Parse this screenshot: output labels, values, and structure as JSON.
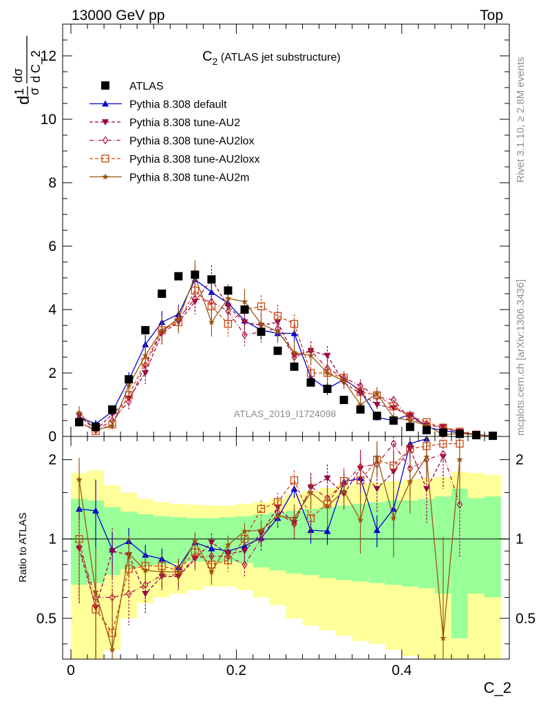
{
  "header": {
    "left": "13000 GeV pp",
    "right": "Top"
  },
  "side_labels": {
    "top": "Rivet 3.1.10, ≥ 2.8M events",
    "bottom": "mcplots.cern.ch [arXiv:1306.3436]"
  },
  "colors": {
    "data": "#000000",
    "default": "#0000cc",
    "au2": "#990044",
    "au2lox": "#aa1144",
    "au2loxx": "#cc4411",
    "au2m": "#995511",
    "band_inner": "#99ff99",
    "band_outer": "#ffff99"
  },
  "chart_data": [
    {
      "type": "scatter",
      "title": "C",
      "title_sub": "2",
      "title_suffix": " (ATLAS jet substructure)",
      "ylabel_parts": {
        "d1": "d",
        "one": "1",
        "sigma": "σ",
        "d2": "d",
        "dsigma": "dσ",
        "d3": "d",
        "var": "C_2"
      },
      "xlim": [
        -0.01,
        0.53
      ],
      "ylim": [
        0,
        13
      ],
      "yticks": [
        0,
        2,
        4,
        6,
        8,
        10,
        12
      ],
      "ytick_labels": [
        "0",
        "2",
        "4",
        "6",
        "8",
        "10",
        "12"
      ],
      "watermark": "ATLAS_2019_I1724098",
      "x": [
        0.01,
        0.03,
        0.05,
        0.07,
        0.09,
        0.11,
        0.13,
        0.15,
        0.17,
        0.19,
        0.21,
        0.23,
        0.25,
        0.27,
        0.29,
        0.31,
        0.33,
        0.35,
        0.37,
        0.39,
        0.41,
        0.43,
        0.45,
        0.47,
        0.49,
        0.51
      ],
      "series": [
        {
          "key": "data",
          "name": "ATLAS",
          "marker": "square",
          "line": "none",
          "values": [
            0.45,
            0.3,
            0.85,
            1.8,
            3.35,
            4.5,
            5.05,
            5.1,
            4.95,
            4.6,
            4.0,
            3.3,
            2.7,
            2.2,
            1.7,
            1.5,
            1.15,
            0.85,
            0.65,
            0.5,
            0.3,
            0.2,
            0.12,
            0.08,
            0.04,
            0.02
          ]
        },
        {
          "key": "default",
          "name": "Pythia 8.308 default",
          "marker": "triangle-up",
          "line": "solid",
          "values": [
            0.6,
            0.4,
            0.78,
            1.78,
            2.9,
            3.6,
            3.85,
            4.95,
            4.55,
            4.2,
            3.65,
            3.35,
            3.25,
            3.25,
            1.85,
            1.5,
            1.8,
            1.45,
            0.6,
            0.5,
            0.7,
            0.3,
            0.18,
            0.12,
            0.05,
            0.02
          ],
          "errors": [
            0.12,
            0.12,
            0.12,
            0.25,
            0.3,
            0.35,
            0.3,
            0.4,
            0.4,
            0.35,
            0.3,
            0.3,
            0.3,
            0.3,
            0.25,
            0.2,
            0.2,
            0.2,
            0.1,
            0.1,
            0.1,
            0.06,
            0.05,
            0.04,
            0.02,
            0.01
          ]
        },
        {
          "key": "au2",
          "name": "Pythia 8.308 tune-AU2",
          "marker": "triangle-down",
          "line": "dashed",
          "values": [
            0.65,
            0.2,
            0.7,
            1.2,
            2.0,
            3.25,
            3.6,
            4.25,
            4.95,
            4.1,
            3.6,
            3.5,
            3.6,
            2.55,
            2.7,
            2.55,
            1.7,
            1.35,
            1.0,
            0.9,
            0.65,
            0.35,
            0.3,
            0.15,
            0.05,
            0.02
          ],
          "errors": [
            0.15,
            0.08,
            0.15,
            0.25,
            0.35,
            0.35,
            0.35,
            0.4,
            0.45,
            0.4,
            0.35,
            0.35,
            0.35,
            0.3,
            0.3,
            0.3,
            0.2,
            0.2,
            0.15,
            0.12,
            0.1,
            0.08,
            0.06,
            0.04,
            0.02,
            0.01
          ]
        },
        {
          "key": "au2lox",
          "name": "Pythia 8.308 tune-AU2lox",
          "marker": "diamond-open",
          "line": "dashdot",
          "values": [
            0.45,
            0.2,
            0.5,
            1.1,
            2.25,
            3.3,
            3.7,
            4.35,
            4.25,
            3.95,
            3.2,
            3.3,
            3.4,
            2.5,
            2.7,
            2.15,
            1.85,
            1.6,
            1.25,
            1.15,
            0.55,
            0.4,
            0.25,
            0.15,
            0.05,
            0.02
          ],
          "errors": [
            0.15,
            0.08,
            0.15,
            0.25,
            0.35,
            0.35,
            0.35,
            0.4,
            0.4,
            0.4,
            0.35,
            0.35,
            0.35,
            0.3,
            0.3,
            0.3,
            0.2,
            0.2,
            0.15,
            0.12,
            0.1,
            0.08,
            0.06,
            0.04,
            0.02,
            0.01
          ]
        },
        {
          "key": "au2loxx",
          "name": "Pythia 8.308 tune-AU2loxx",
          "marker": "square-open",
          "line": "dashed",
          "values": [
            0.45,
            0.17,
            0.38,
            1.3,
            2.35,
            3.35,
            3.6,
            4.6,
            4.1,
            3.55,
            4.0,
            4.1,
            3.8,
            3.55,
            2.0,
            2.0,
            1.85,
            1.4,
            1.3,
            0.95,
            0.65,
            0.45,
            0.28,
            0.15,
            0.06,
            0.02
          ],
          "errors": [
            0.15,
            0.08,
            0.12,
            0.25,
            0.35,
            0.35,
            0.35,
            0.4,
            0.4,
            0.4,
            0.35,
            0.35,
            0.35,
            0.3,
            0.3,
            0.3,
            0.2,
            0.2,
            0.15,
            0.12,
            0.1,
            0.08,
            0.06,
            0.04,
            0.02,
            0.01
          ]
        },
        {
          "key": "au2m",
          "name": "Pythia 8.308 tune-AU2m",
          "marker": "star",
          "line": "solid",
          "values": [
            0.75,
            0.2,
            0.33,
            1.6,
            2.55,
            3.35,
            3.7,
            5.05,
            3.6,
            4.35,
            4.25,
            3.55,
            3.3,
            2.65,
            2.55,
            2.0,
            1.75,
            1.0,
            1.35,
            0.6,
            0.5,
            0.35,
            0.05,
            0.1,
            0.05,
            0.02
          ],
          "errors": [
            0.2,
            0.08,
            0.12,
            0.3,
            0.4,
            0.4,
            0.4,
            0.5,
            0.45,
            0.45,
            0.4,
            0.4,
            0.35,
            0.35,
            0.3,
            0.3,
            0.25,
            0.2,
            0.2,
            0.15,
            0.12,
            0.08,
            0.06,
            0.04,
            0.02,
            0.01
          ]
        }
      ]
    },
    {
      "type": "line",
      "ylabel": "Ratio to ATLAS",
      "xlabel": "C_2",
      "xlim": [
        -0.01,
        0.53
      ],
      "ylim": [
        0.35,
        2.45
      ],
      "xticks": [
        0,
        0.2,
        0.4
      ],
      "xtick_labels": [
        "0",
        "0.2",
        "0.4"
      ],
      "yticks": [
        0.5,
        1,
        2
      ],
      "ytick_labels": [
        "0.5",
        "1",
        "2"
      ],
      "x": [
        0.01,
        0.03,
        0.05,
        0.07,
        0.09,
        0.11,
        0.13,
        0.15,
        0.17,
        0.19,
        0.21,
        0.23,
        0.25,
        0.27,
        0.29,
        0.31,
        0.33,
        0.35,
        0.37,
        0.39,
        0.41,
        0.43,
        0.45,
        0.47,
        0.49,
        0.51
      ],
      "band_inner": {
        "lo": [
          0.67,
          0.68,
          0.73,
          0.77,
          0.79,
          0.8,
          0.81,
          0.82,
          0.82,
          0.82,
          0.81,
          0.78,
          0.76,
          0.74,
          0.73,
          0.71,
          0.7,
          0.69,
          0.68,
          0.67,
          0.66,
          0.65,
          0.62,
          0.42,
          0.62,
          0.6
        ],
        "hi": [
          1.42,
          1.4,
          1.32,
          1.27,
          1.24,
          1.22,
          1.21,
          1.2,
          1.2,
          1.21,
          1.22,
          1.24,
          1.26,
          1.28,
          1.3,
          1.32,
          1.34,
          1.36,
          1.38,
          1.4,
          1.4,
          1.42,
          1.45,
          1.55,
          1.43,
          1.45
        ]
      },
      "band_outer": {
        "lo": [
          0.35,
          0.35,
          0.38,
          0.5,
          0.57,
          0.6,
          0.62,
          0.64,
          0.66,
          0.66,
          0.64,
          0.6,
          0.56,
          0.5,
          0.47,
          0.45,
          0.43,
          0.41,
          0.4,
          0.38,
          0.36,
          0.35,
          0.35,
          0.35,
          0.35,
          0.35
        ],
        "hi": [
          1.78,
          1.82,
          1.6,
          1.5,
          1.42,
          1.38,
          1.36,
          1.35,
          1.34,
          1.34,
          1.36,
          1.38,
          1.42,
          1.48,
          1.52,
          1.56,
          1.6,
          1.62,
          1.64,
          1.66,
          1.68,
          1.7,
          1.72,
          1.8,
          1.78,
          1.75
        ]
      },
      "series": [
        {
          "key": "default",
          "name": "Pythia 8.308 default",
          "values": [
            1.3,
            1.28,
            0.91,
            0.98,
            0.87,
            0.84,
            0.78,
            0.97,
            0.92,
            0.9,
            0.94,
            1.01,
            1.2,
            1.55,
            1.08,
            1.07,
            1.65,
            1.7,
            1.08,
            1.3,
            2.3,
            2.4,
            null,
            null,
            null,
            null
          ],
          "errors": [
            0.12,
            0.4,
            0.15,
            0.12,
            0.08,
            0.08,
            0.06,
            0.07,
            0.07,
            0.07,
            0.07,
            0.08,
            0.1,
            0.12,
            0.12,
            0.12,
            0.15,
            0.2,
            0.15,
            0.2,
            0.3,
            0.3,
            null,
            null,
            null,
            null
          ]
        },
        {
          "key": "au2",
          "name": "Pythia 8.308 tune-AU2",
          "values": [
            0.92,
            0.55,
            0.9,
            0.87,
            0.62,
            0.72,
            0.72,
            0.84,
            0.97,
            0.88,
            0.9,
            1.05,
            1.32,
            1.15,
            1.57,
            1.7,
            1.48,
            1.85,
            1.55,
            1.8,
            2.2,
            1.55,
            2.05,
            null,
            null,
            null
          ],
          "errors": [
            0.35,
            0.3,
            0.2,
            0.15,
            0.1,
            0.08,
            0.08,
            0.08,
            0.08,
            0.08,
            0.08,
            0.1,
            0.12,
            0.15,
            0.2,
            0.22,
            0.2,
            0.3,
            0.3,
            0.35,
            0.4,
            0.4,
            0.5,
            null,
            null,
            null
          ]
        },
        {
          "key": "au2lox",
          "name": "Pythia 8.308 tune-AU2lox",
          "values": [
            0.93,
            0.6,
            0.6,
            0.62,
            0.67,
            0.73,
            0.73,
            0.85,
            0.86,
            0.86,
            0.8,
            1.0,
            1.26,
            1.14,
            1.58,
            1.43,
            1.62,
            1.88,
            1.92,
            2.3,
            1.85,
            2.0,
            2.1,
            1.35,
            null,
            null
          ],
          "errors": [
            0.35,
            0.3,
            0.2,
            0.15,
            0.1,
            0.08,
            0.08,
            0.08,
            0.08,
            0.08,
            0.08,
            0.1,
            0.12,
            0.15,
            0.2,
            0.22,
            0.2,
            0.3,
            0.3,
            0.35,
            0.4,
            0.4,
            0.5,
            0.5,
            null,
            null
          ]
        },
        {
          "key": "au2loxx",
          "name": "Pythia 8.308 tune-AU2loxx",
          "values": [
            1.0,
            0.54,
            0.44,
            0.77,
            0.79,
            0.79,
            0.76,
            0.89,
            0.8,
            0.83,
            1.0,
            1.3,
            1.38,
            1.67,
            1.2,
            1.36,
            1.66,
            1.67,
            2.0,
            1.9,
            2.2,
            2.25,
            2.3,
            2.3,
            null,
            null
          ],
          "errors": [
            0.35,
            0.3,
            0.2,
            0.15,
            0.1,
            0.08,
            0.08,
            0.08,
            0.08,
            0.08,
            0.08,
            0.1,
            0.12,
            0.15,
            0.2,
            0.22,
            0.2,
            0.3,
            0.3,
            0.35,
            0.4,
            0.4,
            0.5,
            0.5,
            null,
            null
          ]
        },
        {
          "key": "au2m",
          "name": "Pythia 8.308 tune-AU2m",
          "values": [
            1.68,
            0.63,
            0.38,
            0.88,
            0.76,
            0.75,
            0.75,
            0.98,
            0.75,
            0.95,
            1.07,
            1.08,
            1.22,
            1.2,
            1.5,
            1.33,
            1.52,
            1.18,
            2.05,
            1.2,
            1.65,
            2.05,
            0.42,
            2.0,
            null,
            null
          ],
          "errors": [
            0.35,
            0.3,
            0.2,
            0.15,
            0.1,
            0.08,
            0.08,
            0.08,
            0.08,
            0.08,
            0.08,
            0.1,
            0.12,
            0.15,
            0.2,
            0.22,
            0.2,
            0.3,
            0.3,
            0.35,
            0.4,
            0.4,
            0.6,
            0.6,
            null,
            null
          ]
        }
      ]
    }
  ]
}
